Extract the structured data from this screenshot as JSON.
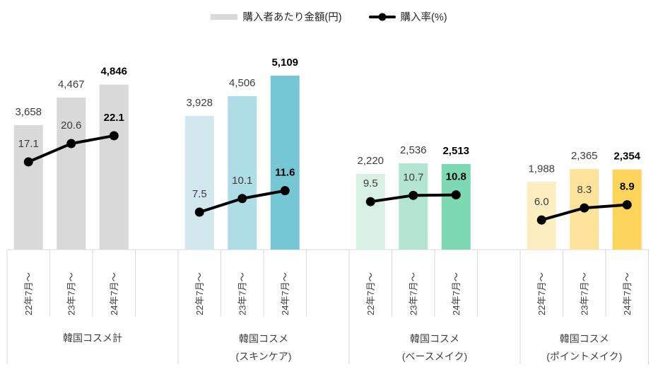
{
  "legend": {
    "bar_label": "購入者あたり金額(円)",
    "line_label": "購入率(%)"
  },
  "colors": {
    "bar_legend_swatch": "#d9d9d9",
    "line_series": "#000000",
    "axis": "#d9d9d9"
  },
  "chart_data": {
    "type": "bar",
    "subtype": "bar+line combo, grouped, hidden value axes",
    "bar_series_name": "購入者あたり金額(円)",
    "line_series_name": "購入率(%)",
    "x_tick_labels": [
      "22年7月～",
      "23年7月～",
      "24年7月～"
    ],
    "emphasized_point_index": 2,
    "bar_axis_approx_range": [
      0,
      6200
    ],
    "line_axis_approx_range": [
      0,
      40
    ],
    "groups": [
      {
        "label_lines": [
          "韓国コスメ計"
        ],
        "bar_values": [
          3658,
          4467,
          4846
        ],
        "bar_value_labels": [
          "3,658",
          "4,467",
          "4,846"
        ],
        "bar_colors": [
          "#d9d9d9",
          "#d9d9d9",
          "#d9d9d9"
        ],
        "line_values": [
          17.1,
          20.6,
          22.1
        ],
        "line_value_labels": [
          "17.1",
          "20.6",
          "22.1"
        ]
      },
      {
        "label_lines": [
          "韓国コスメ",
          "(スキンケア)"
        ],
        "bar_values": [
          3928,
          4506,
          5109
        ],
        "bar_value_labels": [
          "3,928",
          "4,506",
          "5,109"
        ],
        "bar_colors": [
          "#d2e8ee",
          "#aedde5",
          "#76c7d6"
        ],
        "line_values": [
          7.5,
          10.1,
          11.6
        ],
        "line_value_labels": [
          "7.5",
          "10.1",
          "11.6"
        ]
      },
      {
        "label_lines": [
          "韓国コスメ",
          "(ベースメイク)"
        ],
        "bar_values": [
          2220,
          2536,
          2513
        ],
        "bar_value_labels": [
          "2,220",
          "2,536",
          "2,513"
        ],
        "bar_colors": [
          "#d8f0e4",
          "#b3e5d2",
          "#7dd8b4"
        ],
        "line_values": [
          9.5,
          10.7,
          10.8
        ],
        "line_value_labels": [
          "9.5",
          "10.7",
          "10.8"
        ]
      },
      {
        "label_lines": [
          "韓国コスメ",
          "(ポイントメイク)"
        ],
        "bar_values": [
          1988,
          2365,
          2354
        ],
        "bar_value_labels": [
          "1,988",
          "2,365",
          "2,354"
        ],
        "bar_colors": [
          "#fdeec1",
          "#fde49a",
          "#fdd55a"
        ],
        "line_values": [
          6.0,
          8.3,
          8.9
        ],
        "line_value_labels": [
          "6.0",
          "8.3",
          "8.9"
        ]
      }
    ]
  }
}
